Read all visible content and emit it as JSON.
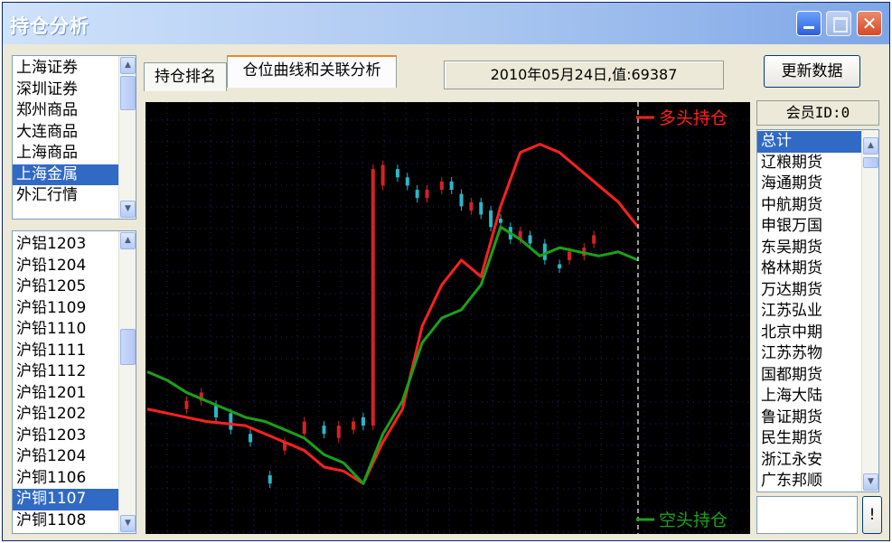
{
  "window": {
    "title": "持仓分析"
  },
  "markets": {
    "items": [
      "上海证券",
      "深圳证券",
      "郑州商品",
      "大连商品",
      "上海商品",
      "上海金属",
      "外汇行情"
    ],
    "selected_index": 5
  },
  "contracts": {
    "items": [
      "沪铝1203",
      "沪铅1204",
      "沪铅1205",
      "沪铅1109",
      "沪铅1110",
      "沪铅1111",
      "沪铅1112",
      "沪铅1201",
      "沪铅1202",
      "沪铅1203",
      "沪铅1204",
      "沪铜1106",
      "沪铜1107",
      "沪铜1108"
    ],
    "selected_index": 12
  },
  "tabs": [
    {
      "label": "持仓排名"
    },
    {
      "label": "仓位曲线和关联分析"
    }
  ],
  "status": {
    "text": "2010年05月24日,值:69387"
  },
  "update_button": {
    "label": "更新数据"
  },
  "member": {
    "label": "会员ID:0",
    "items": [
      "总计",
      "辽粮期货",
      "海通期货",
      "中航期货",
      "申银万国",
      "东吴期货",
      "格林期货",
      "万达期货",
      "江苏弘业",
      "北京中期",
      "江苏苏物",
      "国都期货",
      "上海大陆",
      "鲁证期货",
      "民生期货",
      "浙江永安",
      "广东邦顺"
    ],
    "selected_index": 0
  },
  "go_button": {
    "label": "!"
  },
  "colors": {
    "long": "#ff2020",
    "short": "#1aa11a",
    "up_candle": "#d42323",
    "down_candle": "#29b8c8",
    "grid": "#1f1f7a",
    "cursor": "#ffffff"
  },
  "chart_data": {
    "type": "line",
    "ylim": [
      0,
      100
    ],
    "series": [
      {
        "name": "多头持仓",
        "color": "#ff2020",
        "x": [
          0,
          4,
          8,
          12,
          16,
          20,
          24,
          28,
          32,
          36,
          40,
          44,
          48,
          52,
          56,
          60,
          64,
          68,
          72,
          76,
          80,
          84,
          88,
          92,
          96,
          100
        ],
        "y": [
          28,
          27,
          26,
          25,
          24.5,
          24,
          22,
          20,
          18,
          14,
          13,
          10,
          20,
          28,
          48,
          58,
          64,
          60,
          77,
          90,
          92,
          90,
          86,
          82,
          78,
          72
        ]
      },
      {
        "name": "空头持仓",
        "color": "#1aa11a",
        "x": [
          0,
          4,
          8,
          12,
          16,
          20,
          24,
          28,
          32,
          36,
          40,
          44,
          48,
          52,
          56,
          60,
          64,
          68,
          72,
          76,
          80,
          84,
          88,
          92,
          96,
          100
        ],
        "y": [
          37,
          35,
          32,
          30,
          28,
          26,
          25,
          23,
          21,
          17,
          15,
          10,
          22,
          30,
          44,
          50,
          52,
          58,
          72,
          69,
          65,
          67,
          66,
          65,
          66,
          64
        ]
      }
    ],
    "candles": {
      "x": [
        8,
        11,
        14,
        17,
        21,
        25,
        28,
        32,
        36,
        39,
        42,
        44,
        46,
        48,
        51,
        53,
        55,
        57,
        60,
        62,
        64,
        66,
        68,
        70,
        72,
        74,
        76,
        78,
        81,
        84,
        86,
        89,
        91
      ],
      "open": [
        28,
        30,
        29,
        27,
        22,
        12,
        18,
        22,
        24,
        21,
        23,
        26,
        24,
        82,
        86,
        84,
        81,
        79,
        81,
        83,
        80,
        76,
        78,
        76,
        74,
        72,
        69,
        70,
        68,
        63,
        64,
        65,
        68
      ],
      "close": [
        30,
        32,
        26,
        23,
        20,
        10,
        20,
        25,
        22,
        24,
        25,
        24,
        86,
        87,
        84,
        82,
        79,
        81,
        83,
        81,
        77,
        78,
        75,
        72,
        73,
        69,
        71,
        68,
        64,
        62,
        66,
        67,
        70
      ]
    }
  },
  "legend": {
    "long_label": "多头持仓",
    "short_label": "空头持仓"
  }
}
